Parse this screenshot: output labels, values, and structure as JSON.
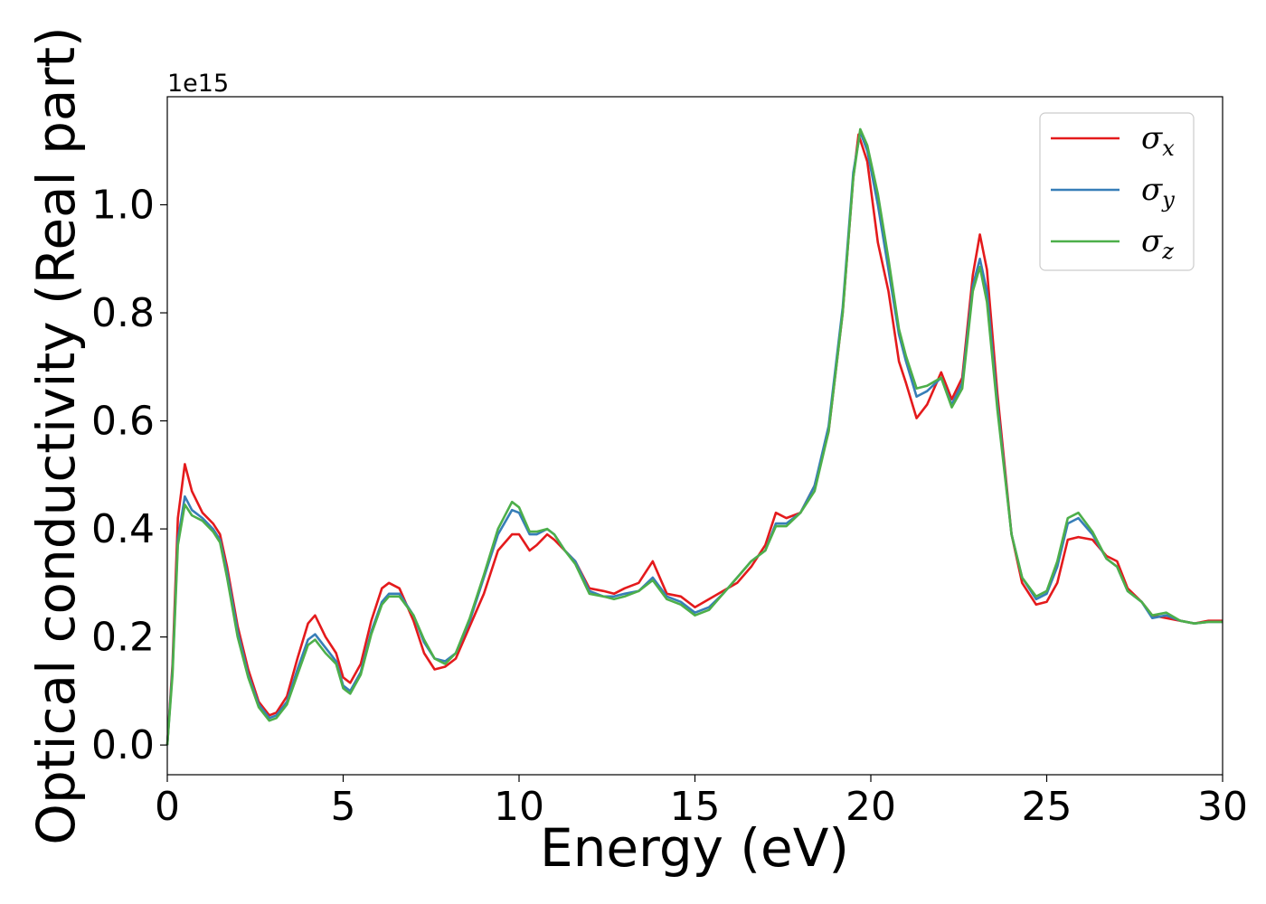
{
  "chart_data": {
    "type": "line",
    "xlabel": "Energy (eV)",
    "ylabel": "Optical conductivity (Real part)",
    "y_offset_text": "1e15",
    "xlim": [
      0,
      30
    ],
    "ylim": [
      -0.055,
      1.2
    ],
    "x_ticks": [
      0,
      5,
      10,
      15,
      20,
      25,
      30
    ],
    "x_tick_labels": [
      "0",
      "5",
      "10",
      "15",
      "20",
      "25",
      "30"
    ],
    "y_ticks": [
      0.0,
      0.2,
      0.4,
      0.6,
      0.8,
      1.0
    ],
    "y_tick_labels": [
      "0.0",
      "0.2",
      "0.4",
      "0.6",
      "0.8",
      "1.0"
    ],
    "grid": false,
    "legend_position": "top-right",
    "colors": {
      "sigma_x": "#e41a1c",
      "sigma_y": "#377eb8",
      "sigma_z": "#4daf4a"
    },
    "series": [
      {
        "name": "σx",
        "legend_base": "σ",
        "legend_sub": "x",
        "color": "#e41a1c",
        "points": [
          [
            0,
            0.0
          ],
          [
            0.15,
            0.15
          ],
          [
            0.3,
            0.42
          ],
          [
            0.5,
            0.52
          ],
          [
            0.7,
            0.47
          ],
          [
            1.0,
            0.43
          ],
          [
            1.3,
            0.41
          ],
          [
            1.5,
            0.39
          ],
          [
            1.7,
            0.33
          ],
          [
            2.0,
            0.22
          ],
          [
            2.3,
            0.14
          ],
          [
            2.6,
            0.08
          ],
          [
            2.9,
            0.055
          ],
          [
            3.1,
            0.06
          ],
          [
            3.4,
            0.09
          ],
          [
            3.7,
            0.16
          ],
          [
            4.0,
            0.225
          ],
          [
            4.2,
            0.24
          ],
          [
            4.5,
            0.2
          ],
          [
            4.8,
            0.17
          ],
          [
            5.0,
            0.125
          ],
          [
            5.2,
            0.115
          ],
          [
            5.5,
            0.15
          ],
          [
            5.8,
            0.23
          ],
          [
            6.1,
            0.29
          ],
          [
            6.3,
            0.3
          ],
          [
            6.6,
            0.29
          ],
          [
            7.0,
            0.23
          ],
          [
            7.3,
            0.17
          ],
          [
            7.6,
            0.14
          ],
          [
            7.9,
            0.145
          ],
          [
            8.2,
            0.16
          ],
          [
            8.6,
            0.22
          ],
          [
            9.0,
            0.28
          ],
          [
            9.4,
            0.36
          ],
          [
            9.8,
            0.39
          ],
          [
            10.0,
            0.39
          ],
          [
            10.3,
            0.36
          ],
          [
            10.5,
            0.37
          ],
          [
            10.8,
            0.39
          ],
          [
            11.0,
            0.38
          ],
          [
            11.3,
            0.36
          ],
          [
            11.6,
            0.34
          ],
          [
            12.0,
            0.29
          ],
          [
            12.4,
            0.285
          ],
          [
            12.7,
            0.28
          ],
          [
            13.0,
            0.29
          ],
          [
            13.4,
            0.3
          ],
          [
            13.8,
            0.34
          ],
          [
            14.2,
            0.28
          ],
          [
            14.6,
            0.275
          ],
          [
            15.0,
            0.255
          ],
          [
            15.4,
            0.27
          ],
          [
            15.8,
            0.285
          ],
          [
            16.2,
            0.3
          ],
          [
            16.6,
            0.33
          ],
          [
            17.0,
            0.37
          ],
          [
            17.3,
            0.43
          ],
          [
            17.6,
            0.42
          ],
          [
            18.0,
            0.43
          ],
          [
            18.4,
            0.48
          ],
          [
            18.8,
            0.58
          ],
          [
            19.2,
            0.8
          ],
          [
            19.5,
            1.05
          ],
          [
            19.65,
            1.13
          ],
          [
            19.9,
            1.08
          ],
          [
            20.2,
            0.93
          ],
          [
            20.5,
            0.84
          ],
          [
            20.8,
            0.71
          ],
          [
            21.0,
            0.67
          ],
          [
            21.3,
            0.605
          ],
          [
            21.6,
            0.63
          ],
          [
            22.0,
            0.69
          ],
          [
            22.3,
            0.64
          ],
          [
            22.6,
            0.68
          ],
          [
            22.9,
            0.87
          ],
          [
            23.1,
            0.945
          ],
          [
            23.3,
            0.88
          ],
          [
            23.6,
            0.65
          ],
          [
            24.0,
            0.39
          ],
          [
            24.3,
            0.3
          ],
          [
            24.7,
            0.26
          ],
          [
            25.0,
            0.265
          ],
          [
            25.3,
            0.3
          ],
          [
            25.6,
            0.38
          ],
          [
            25.9,
            0.385
          ],
          [
            26.3,
            0.38
          ],
          [
            26.7,
            0.35
          ],
          [
            27.0,
            0.34
          ],
          [
            27.3,
            0.29
          ],
          [
            27.7,
            0.265
          ],
          [
            28.0,
            0.24
          ],
          [
            28.4,
            0.235
          ],
          [
            28.8,
            0.23
          ],
          [
            29.2,
            0.225
          ],
          [
            29.6,
            0.23
          ],
          [
            30.0,
            0.23
          ]
        ]
      },
      {
        "name": "σy",
        "legend_base": "σ",
        "legend_sub": "y",
        "color": "#377eb8",
        "points": [
          [
            0,
            0.0
          ],
          [
            0.15,
            0.14
          ],
          [
            0.3,
            0.38
          ],
          [
            0.5,
            0.46
          ],
          [
            0.7,
            0.435
          ],
          [
            1.0,
            0.42
          ],
          [
            1.3,
            0.4
          ],
          [
            1.5,
            0.38
          ],
          [
            1.7,
            0.32
          ],
          [
            2.0,
            0.21
          ],
          [
            2.3,
            0.13
          ],
          [
            2.6,
            0.075
          ],
          [
            2.9,
            0.05
          ],
          [
            3.1,
            0.055
          ],
          [
            3.4,
            0.08
          ],
          [
            3.7,
            0.14
          ],
          [
            4.0,
            0.195
          ],
          [
            4.2,
            0.205
          ],
          [
            4.5,
            0.18
          ],
          [
            4.8,
            0.155
          ],
          [
            5.0,
            0.11
          ],
          [
            5.2,
            0.1
          ],
          [
            5.5,
            0.135
          ],
          [
            5.8,
            0.21
          ],
          [
            6.1,
            0.265
          ],
          [
            6.3,
            0.28
          ],
          [
            6.6,
            0.28
          ],
          [
            7.0,
            0.24
          ],
          [
            7.3,
            0.19
          ],
          [
            7.6,
            0.16
          ],
          [
            7.9,
            0.155
          ],
          [
            8.2,
            0.17
          ],
          [
            8.6,
            0.23
          ],
          [
            9.0,
            0.31
          ],
          [
            9.4,
            0.39
          ],
          [
            9.8,
            0.435
          ],
          [
            10.0,
            0.43
          ],
          [
            10.3,
            0.39
          ],
          [
            10.5,
            0.39
          ],
          [
            10.8,
            0.4
          ],
          [
            11.0,
            0.39
          ],
          [
            11.3,
            0.36
          ],
          [
            11.6,
            0.34
          ],
          [
            12.0,
            0.285
          ],
          [
            12.4,
            0.275
          ],
          [
            12.7,
            0.275
          ],
          [
            13.0,
            0.28
          ],
          [
            13.4,
            0.285
          ],
          [
            13.8,
            0.31
          ],
          [
            14.2,
            0.275
          ],
          [
            14.6,
            0.265
          ],
          [
            15.0,
            0.245
          ],
          [
            15.4,
            0.255
          ],
          [
            15.8,
            0.28
          ],
          [
            16.2,
            0.31
          ],
          [
            16.6,
            0.34
          ],
          [
            17.0,
            0.36
          ],
          [
            17.3,
            0.41
          ],
          [
            17.6,
            0.41
          ],
          [
            18.0,
            0.43
          ],
          [
            18.4,
            0.48
          ],
          [
            18.8,
            0.59
          ],
          [
            19.2,
            0.81
          ],
          [
            19.5,
            1.06
          ],
          [
            19.7,
            1.135
          ],
          [
            19.9,
            1.1
          ],
          [
            20.2,
            1.0
          ],
          [
            20.5,
            0.88
          ],
          [
            20.8,
            0.76
          ],
          [
            21.0,
            0.71
          ],
          [
            21.3,
            0.645
          ],
          [
            21.6,
            0.655
          ],
          [
            22.0,
            0.68
          ],
          [
            22.3,
            0.63
          ],
          [
            22.6,
            0.67
          ],
          [
            22.9,
            0.85
          ],
          [
            23.1,
            0.9
          ],
          [
            23.3,
            0.84
          ],
          [
            23.6,
            0.63
          ],
          [
            24.0,
            0.39
          ],
          [
            24.3,
            0.31
          ],
          [
            24.7,
            0.27
          ],
          [
            25.0,
            0.28
          ],
          [
            25.3,
            0.33
          ],
          [
            25.6,
            0.41
          ],
          [
            25.9,
            0.42
          ],
          [
            26.3,
            0.39
          ],
          [
            26.7,
            0.345
          ],
          [
            27.0,
            0.33
          ],
          [
            27.3,
            0.285
          ],
          [
            27.7,
            0.265
          ],
          [
            28.0,
            0.235
          ],
          [
            28.4,
            0.24
          ],
          [
            28.8,
            0.23
          ],
          [
            29.2,
            0.225
          ],
          [
            29.6,
            0.228
          ],
          [
            30.0,
            0.228
          ]
        ]
      },
      {
        "name": "σz",
        "legend_base": "σ",
        "legend_sub": "z",
        "color": "#4daf4a",
        "points": [
          [
            0,
            0.0
          ],
          [
            0.15,
            0.13
          ],
          [
            0.3,
            0.37
          ],
          [
            0.5,
            0.445
          ],
          [
            0.7,
            0.425
          ],
          [
            1.0,
            0.415
          ],
          [
            1.3,
            0.395
          ],
          [
            1.5,
            0.375
          ],
          [
            1.7,
            0.31
          ],
          [
            2.0,
            0.2
          ],
          [
            2.3,
            0.125
          ],
          [
            2.6,
            0.07
          ],
          [
            2.9,
            0.045
          ],
          [
            3.1,
            0.05
          ],
          [
            3.4,
            0.075
          ],
          [
            3.7,
            0.13
          ],
          [
            4.0,
            0.185
          ],
          [
            4.2,
            0.195
          ],
          [
            4.5,
            0.17
          ],
          [
            4.8,
            0.15
          ],
          [
            5.0,
            0.105
          ],
          [
            5.2,
            0.095
          ],
          [
            5.5,
            0.13
          ],
          [
            5.8,
            0.205
          ],
          [
            6.1,
            0.26
          ],
          [
            6.3,
            0.275
          ],
          [
            6.6,
            0.275
          ],
          [
            7.0,
            0.24
          ],
          [
            7.3,
            0.195
          ],
          [
            7.6,
            0.16
          ],
          [
            7.9,
            0.15
          ],
          [
            8.2,
            0.17
          ],
          [
            8.6,
            0.235
          ],
          [
            9.0,
            0.315
          ],
          [
            9.4,
            0.4
          ],
          [
            9.8,
            0.45
          ],
          [
            10.0,
            0.44
          ],
          [
            10.3,
            0.395
          ],
          [
            10.5,
            0.395
          ],
          [
            10.8,
            0.4
          ],
          [
            11.0,
            0.39
          ],
          [
            11.3,
            0.36
          ],
          [
            11.6,
            0.335
          ],
          [
            12.0,
            0.28
          ],
          [
            12.4,
            0.275
          ],
          [
            12.7,
            0.27
          ],
          [
            13.0,
            0.275
          ],
          [
            13.4,
            0.285
          ],
          [
            13.8,
            0.305
          ],
          [
            14.2,
            0.27
          ],
          [
            14.6,
            0.26
          ],
          [
            15.0,
            0.24
          ],
          [
            15.4,
            0.25
          ],
          [
            15.8,
            0.28
          ],
          [
            16.2,
            0.31
          ],
          [
            16.6,
            0.34
          ],
          [
            17.0,
            0.36
          ],
          [
            17.3,
            0.405
          ],
          [
            17.6,
            0.405
          ],
          [
            18.0,
            0.43
          ],
          [
            18.4,
            0.47
          ],
          [
            18.8,
            0.58
          ],
          [
            19.2,
            0.8
          ],
          [
            19.5,
            1.05
          ],
          [
            19.7,
            1.14
          ],
          [
            19.9,
            1.11
          ],
          [
            20.2,
            1.02
          ],
          [
            20.5,
            0.9
          ],
          [
            20.8,
            0.77
          ],
          [
            21.0,
            0.72
          ],
          [
            21.3,
            0.66
          ],
          [
            21.6,
            0.665
          ],
          [
            22.0,
            0.68
          ],
          [
            22.3,
            0.625
          ],
          [
            22.6,
            0.66
          ],
          [
            22.9,
            0.84
          ],
          [
            23.1,
            0.885
          ],
          [
            23.3,
            0.82
          ],
          [
            23.6,
            0.62
          ],
          [
            24.0,
            0.39
          ],
          [
            24.3,
            0.31
          ],
          [
            24.7,
            0.275
          ],
          [
            25.0,
            0.285
          ],
          [
            25.3,
            0.34
          ],
          [
            25.6,
            0.42
          ],
          [
            25.9,
            0.43
          ],
          [
            26.3,
            0.395
          ],
          [
            26.7,
            0.345
          ],
          [
            27.0,
            0.33
          ],
          [
            27.3,
            0.285
          ],
          [
            27.7,
            0.265
          ],
          [
            28.0,
            0.24
          ],
          [
            28.4,
            0.245
          ],
          [
            28.8,
            0.23
          ],
          [
            29.2,
            0.225
          ],
          [
            29.6,
            0.228
          ],
          [
            30.0,
            0.228
          ]
        ]
      }
    ]
  }
}
